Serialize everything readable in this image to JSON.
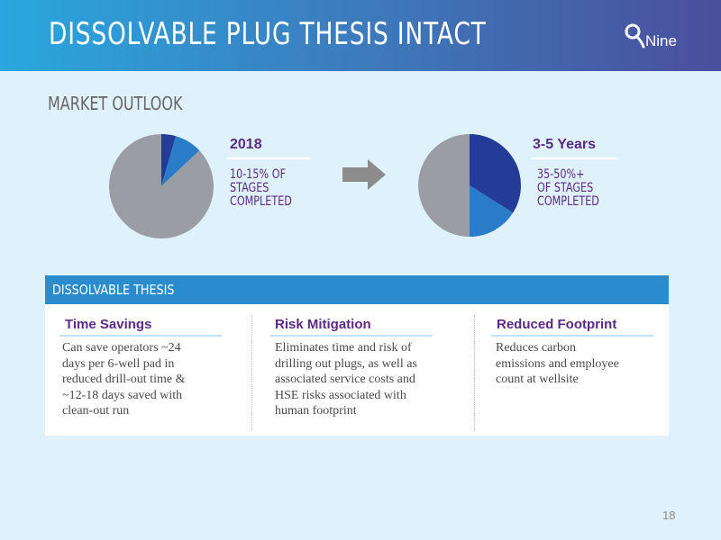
{
  "header": {
    "title": "DISSOLVABLE PLUG THESIS INTACT",
    "logo_text": "Nine"
  },
  "market": {
    "title": "MARKET OUTLOOK",
    "left": {
      "year": "2018",
      "desc": "10-15% OF\nSTAGES\nCOMPLETED",
      "slices": [
        {
          "share": 0.045,
          "color": "#233c96"
        },
        {
          "share": 0.085,
          "color": "#2a7cc8"
        },
        {
          "share": 0.87,
          "color": "#9a9ea4"
        }
      ]
    },
    "right": {
      "year": "3-5 Years",
      "desc": "35-50%+\nOF STAGES\nCOMPLETED",
      "slices": [
        {
          "share": 0.34,
          "color": "#233c96"
        },
        {
          "share": 0.16,
          "color": "#2a7cc8"
        },
        {
          "share": 0.5,
          "color": "#9a9ea4"
        }
      ]
    }
  },
  "thesis": {
    "bar_title": "DISSOLVABLE THESIS",
    "columns": [
      {
        "heading": "Time Savings",
        "lines": [
          "Can save operators ~24",
          "days per 6-well pad in",
          "reduced drill-out time &",
          "~12-18 days saved with",
          "clean-out run"
        ]
      },
      {
        "heading": "Risk Mitigation",
        "lines": [
          "Eliminates time and risk of",
          "drilling out plugs, as well as",
          "associated service costs and",
          "HSE risks associated with",
          "human footprint"
        ]
      },
      {
        "heading": "Reduced Footprint",
        "lines": [
          "Reduces carbon",
          "emissions and employee",
          "count at wellsite"
        ]
      }
    ]
  },
  "page_number": "18"
}
